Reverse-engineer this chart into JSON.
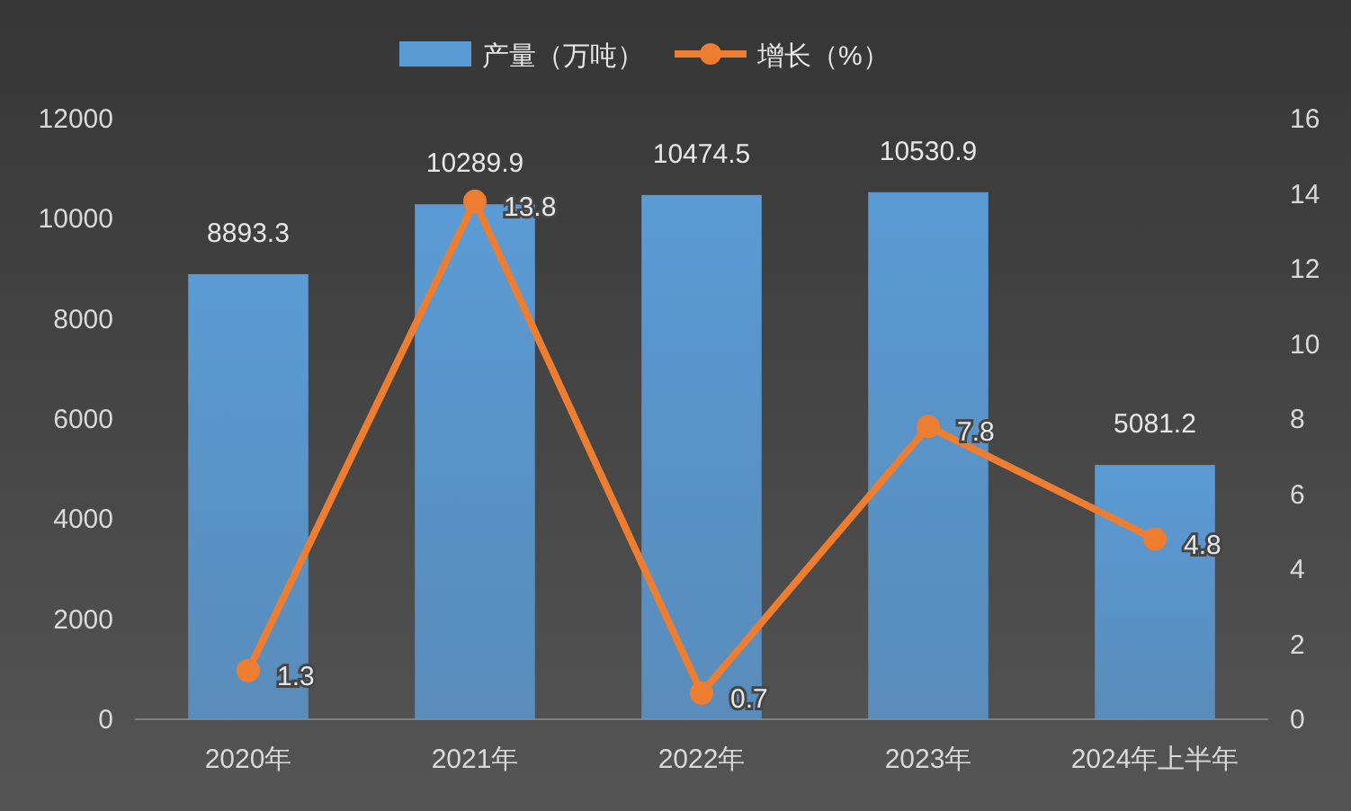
{
  "chart_data": {
    "type": "bar",
    "categories": [
      "2020年",
      "2021年",
      "2022年",
      "2023年",
      "2024年上半年"
    ],
    "series": [
      {
        "name": "产量（万吨）",
        "color": "#5b9bd5",
        "values": [
          8893.3,
          10289.9,
          10474.5,
          10530.9,
          5081.2
        ]
      },
      {
        "name": "增长（%）",
        "type": "line",
        "axis": "y2",
        "color": "#ed7d31",
        "marker": "circle",
        "values": [
          1.3,
          13.8,
          0.7,
          7.8,
          4.8
        ]
      }
    ],
    "ylim": [
      0,
      12000
    ],
    "yticks": [
      0,
      2000,
      4000,
      6000,
      8000,
      10000,
      12000
    ],
    "y2lim": [
      0,
      16
    ],
    "y2ticks": [
      0,
      2,
      4,
      6,
      8,
      10,
      12,
      14,
      16
    ],
    "data_labels": true,
    "legend": "top",
    "grid": false
  }
}
